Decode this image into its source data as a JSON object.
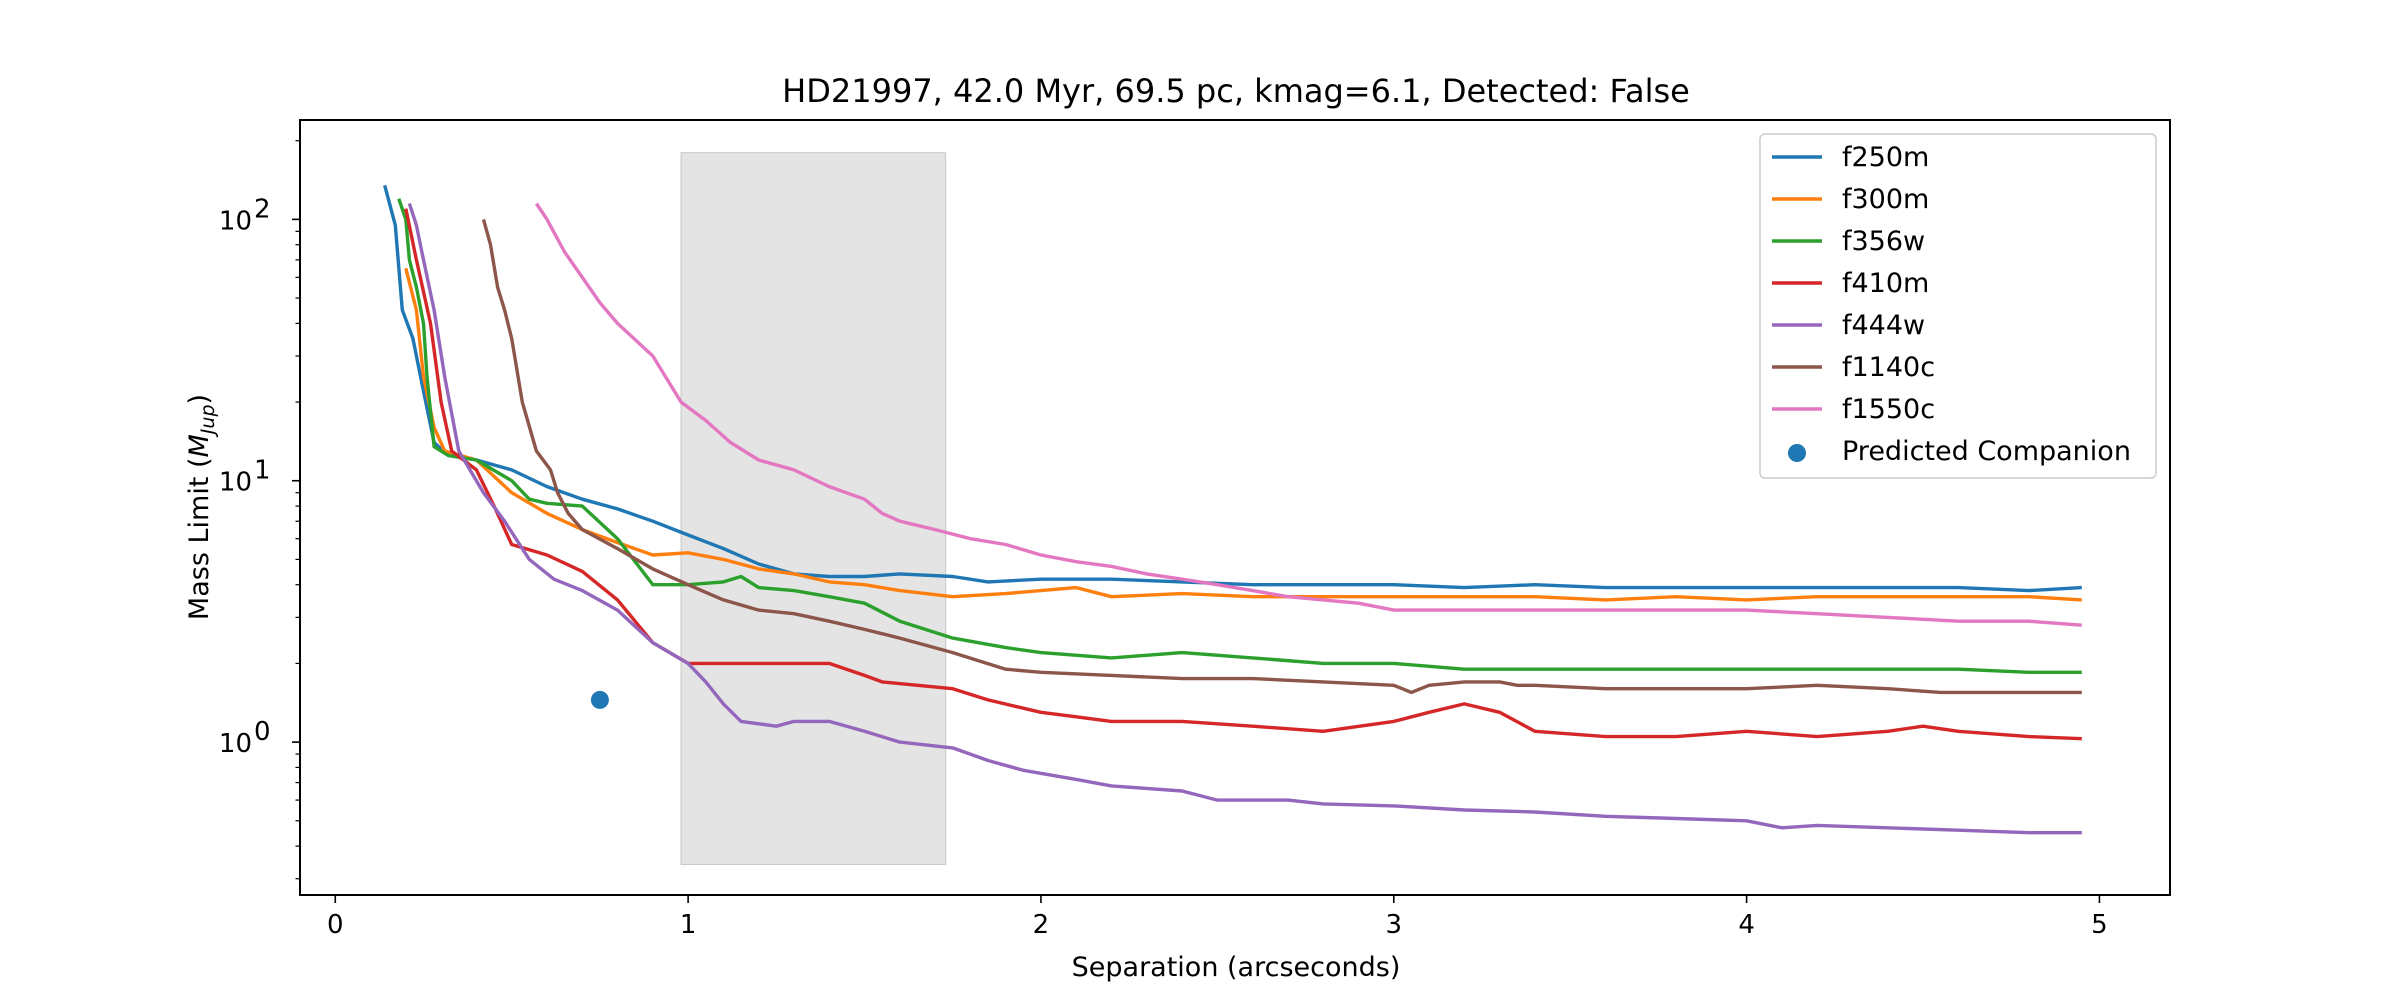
{
  "chart_data": {
    "type": "line",
    "title": "HD21997, 42.0 Myr, 69.5 pc, kmag=6.1, Detected: False",
    "xlabel": "Separation (arcseconds)",
    "ylabel_text": "Mass Limit (",
    "ylabel_math_base": "M",
    "ylabel_math_sub": "Jup",
    "ylabel_close": ")",
    "y_scale": "log",
    "xlim": [
      -0.1,
      5.2
    ],
    "ylim": [
      0.26,
      240
    ],
    "x_ticks": [
      0,
      1,
      2,
      3,
      4,
      5
    ],
    "x_tick_labels": [
      "0",
      "1",
      "2",
      "3",
      "4",
      "5"
    ],
    "y_major_ticks": [
      1,
      10,
      100
    ],
    "y_tick_labels": [
      {
        "base": "10",
        "exp": "0"
      },
      {
        "base": "10",
        "exp": "1"
      },
      {
        "base": "10",
        "exp": "2"
      }
    ],
    "grid": false,
    "legend_position": "top-right",
    "shaded_region": {
      "x": [
        0.98,
        1.73
      ],
      "y": [
        0.34,
        180
      ],
      "color": "#e4e4e4"
    },
    "series": [
      {
        "name": "f250m",
        "color": "#1f77b4",
        "points": [
          [
            0.14,
            135
          ],
          [
            0.17,
            95
          ],
          [
            0.19,
            45
          ],
          [
            0.22,
            35
          ],
          [
            0.25,
            22
          ],
          [
            0.28,
            14
          ],
          [
            0.32,
            12.5
          ],
          [
            0.4,
            12
          ],
          [
            0.5,
            11
          ],
          [
            0.6,
            9.5
          ],
          [
            0.7,
            8.5
          ],
          [
            0.8,
            7.8
          ],
          [
            0.9,
            7
          ],
          [
            1.0,
            6.2
          ],
          [
            1.1,
            5.5
          ],
          [
            1.2,
            4.8
          ],
          [
            1.3,
            4.4
          ],
          [
            1.4,
            4.3
          ],
          [
            1.5,
            4.3
          ],
          [
            1.6,
            4.4
          ],
          [
            1.75,
            4.3
          ],
          [
            1.85,
            4.1
          ],
          [
            2.0,
            4.2
          ],
          [
            2.2,
            4.2
          ],
          [
            2.4,
            4.1
          ],
          [
            2.6,
            4.0
          ],
          [
            2.8,
            4.0
          ],
          [
            3.0,
            4.0
          ],
          [
            3.2,
            3.9
          ],
          [
            3.4,
            4.0
          ],
          [
            3.6,
            3.9
          ],
          [
            3.8,
            3.9
          ],
          [
            4.0,
            3.9
          ],
          [
            4.2,
            3.9
          ],
          [
            4.4,
            3.9
          ],
          [
            4.6,
            3.9
          ],
          [
            4.8,
            3.8
          ],
          [
            4.95,
            3.9
          ]
        ]
      },
      {
        "name": "f300m",
        "color": "#ff7f0e",
        "points": [
          [
            0.2,
            65
          ],
          [
            0.23,
            45
          ],
          [
            0.25,
            25
          ],
          [
            0.28,
            16
          ],
          [
            0.31,
            13
          ],
          [
            0.4,
            12
          ],
          [
            0.5,
            9
          ],
          [
            0.6,
            7.5
          ],
          [
            0.7,
            6.5
          ],
          [
            0.8,
            5.8
          ],
          [
            0.9,
            5.2
          ],
          [
            1.0,
            5.3
          ],
          [
            1.1,
            5.0
          ],
          [
            1.2,
            4.6
          ],
          [
            1.3,
            4.4
          ],
          [
            1.4,
            4.1
          ],
          [
            1.5,
            4.0
          ],
          [
            1.6,
            3.8
          ],
          [
            1.75,
            3.6
          ],
          [
            1.9,
            3.7
          ],
          [
            2.0,
            3.8
          ],
          [
            2.1,
            3.9
          ],
          [
            2.2,
            3.6
          ],
          [
            2.4,
            3.7
          ],
          [
            2.6,
            3.6
          ],
          [
            2.8,
            3.6
          ],
          [
            3.0,
            3.6
          ],
          [
            3.2,
            3.6
          ],
          [
            3.4,
            3.6
          ],
          [
            3.6,
            3.5
          ],
          [
            3.8,
            3.6
          ],
          [
            4.0,
            3.5
          ],
          [
            4.2,
            3.6
          ],
          [
            4.4,
            3.6
          ],
          [
            4.6,
            3.6
          ],
          [
            4.8,
            3.6
          ],
          [
            4.95,
            3.5
          ]
        ]
      },
      {
        "name": "f356w",
        "color": "#2ca02c",
        "points": [
          [
            0.18,
            120
          ],
          [
            0.2,
            100
          ],
          [
            0.21,
            70
          ],
          [
            0.23,
            55
          ],
          [
            0.25,
            40
          ],
          [
            0.26,
            25
          ],
          [
            0.28,
            13.5
          ],
          [
            0.32,
            12.5
          ],
          [
            0.4,
            12
          ],
          [
            0.5,
            10
          ],
          [
            0.55,
            8.5
          ],
          [
            0.6,
            8.2
          ],
          [
            0.7,
            8.0
          ],
          [
            0.8,
            6.0
          ],
          [
            0.9,
            4.0
          ],
          [
            1.0,
            4.0
          ],
          [
            1.1,
            4.1
          ],
          [
            1.15,
            4.3
          ],
          [
            1.2,
            3.9
          ],
          [
            1.3,
            3.8
          ],
          [
            1.4,
            3.6
          ],
          [
            1.5,
            3.4
          ],
          [
            1.6,
            2.9
          ],
          [
            1.75,
            2.5
          ],
          [
            1.9,
            2.3
          ],
          [
            2.0,
            2.2
          ],
          [
            2.2,
            2.1
          ],
          [
            2.4,
            2.2
          ],
          [
            2.6,
            2.1
          ],
          [
            2.8,
            2.0
          ],
          [
            3.0,
            2.0
          ],
          [
            3.2,
            1.9
          ],
          [
            3.4,
            1.9
          ],
          [
            3.6,
            1.9
          ],
          [
            3.8,
            1.9
          ],
          [
            4.0,
            1.9
          ],
          [
            4.2,
            1.9
          ],
          [
            4.4,
            1.9
          ],
          [
            4.6,
            1.9
          ],
          [
            4.8,
            1.85
          ],
          [
            4.95,
            1.85
          ]
        ]
      },
      {
        "name": "f410m",
        "color": "#d62728",
        "points": [
          [
            0.2,
            110
          ],
          [
            0.23,
            70
          ],
          [
            0.27,
            40
          ],
          [
            0.3,
            20
          ],
          [
            0.33,
            13
          ],
          [
            0.4,
            11
          ],
          [
            0.45,
            8
          ],
          [
            0.5,
            5.7
          ],
          [
            0.6,
            5.2
          ],
          [
            0.7,
            4.5
          ],
          [
            0.8,
            3.5
          ],
          [
            0.9,
            2.4
          ],
          [
            1.0,
            2.0
          ],
          [
            1.1,
            2.0
          ],
          [
            1.2,
            2.0
          ],
          [
            1.3,
            2.0
          ],
          [
            1.4,
            2.0
          ],
          [
            1.5,
            1.8
          ],
          [
            1.55,
            1.7
          ],
          [
            1.65,
            1.65
          ],
          [
            1.75,
            1.6
          ],
          [
            1.85,
            1.45
          ],
          [
            2.0,
            1.3
          ],
          [
            2.1,
            1.25
          ],
          [
            2.2,
            1.2
          ],
          [
            2.3,
            1.2
          ],
          [
            2.4,
            1.2
          ],
          [
            2.6,
            1.15
          ],
          [
            2.8,
            1.1
          ],
          [
            3.0,
            1.2
          ],
          [
            3.1,
            1.3
          ],
          [
            3.2,
            1.4
          ],
          [
            3.3,
            1.3
          ],
          [
            3.4,
            1.1
          ],
          [
            3.6,
            1.05
          ],
          [
            3.8,
            1.05
          ],
          [
            4.0,
            1.1
          ],
          [
            4.2,
            1.05
          ],
          [
            4.4,
            1.1
          ],
          [
            4.5,
            1.15
          ],
          [
            4.6,
            1.1
          ],
          [
            4.8,
            1.05
          ],
          [
            4.95,
            1.03
          ]
        ]
      },
      {
        "name": "f444w",
        "color": "#9467bd",
        "points": [
          [
            0.21,
            115
          ],
          [
            0.23,
            95
          ],
          [
            0.25,
            70
          ],
          [
            0.28,
            45
          ],
          [
            0.31,
            25
          ],
          [
            0.35,
            13
          ],
          [
            0.42,
            9
          ],
          [
            0.48,
            7
          ],
          [
            0.55,
            5
          ],
          [
            0.62,
            4.2
          ],
          [
            0.7,
            3.8
          ],
          [
            0.8,
            3.2
          ],
          [
            0.9,
            2.4
          ],
          [
            1.0,
            2.0
          ],
          [
            1.05,
            1.7
          ],
          [
            1.1,
            1.4
          ],
          [
            1.15,
            1.2
          ],
          [
            1.25,
            1.15
          ],
          [
            1.3,
            1.2
          ],
          [
            1.4,
            1.2
          ],
          [
            1.5,
            1.1
          ],
          [
            1.6,
            1.0
          ],
          [
            1.75,
            0.95
          ],
          [
            1.85,
            0.85
          ],
          [
            1.95,
            0.78
          ],
          [
            2.1,
            0.72
          ],
          [
            2.2,
            0.68
          ],
          [
            2.4,
            0.65
          ],
          [
            2.5,
            0.6
          ],
          [
            2.7,
            0.6
          ],
          [
            2.8,
            0.58
          ],
          [
            3.0,
            0.57
          ],
          [
            3.2,
            0.55
          ],
          [
            3.4,
            0.54
          ],
          [
            3.6,
            0.52
          ],
          [
            3.8,
            0.51
          ],
          [
            4.0,
            0.5
          ],
          [
            4.1,
            0.47
          ],
          [
            4.2,
            0.48
          ],
          [
            4.4,
            0.47
          ],
          [
            4.6,
            0.46
          ],
          [
            4.8,
            0.45
          ],
          [
            4.95,
            0.45
          ]
        ]
      },
      {
        "name": "f1140c",
        "color": "#8c564b",
        "points": [
          [
            0.42,
            100
          ],
          [
            0.44,
            80
          ],
          [
            0.46,
            55
          ],
          [
            0.48,
            45
          ],
          [
            0.5,
            35
          ],
          [
            0.53,
            20
          ],
          [
            0.57,
            13
          ],
          [
            0.61,
            11
          ],
          [
            0.63,
            9
          ],
          [
            0.66,
            7.5
          ],
          [
            0.7,
            6.5
          ],
          [
            0.8,
            5.5
          ],
          [
            0.9,
            4.6
          ],
          [
            1.0,
            4.0
          ],
          [
            1.1,
            3.5
          ],
          [
            1.2,
            3.2
          ],
          [
            1.3,
            3.1
          ],
          [
            1.4,
            2.9
          ],
          [
            1.5,
            2.7
          ],
          [
            1.6,
            2.5
          ],
          [
            1.75,
            2.2
          ],
          [
            1.9,
            1.9
          ],
          [
            2.0,
            1.85
          ],
          [
            2.2,
            1.8
          ],
          [
            2.4,
            1.75
          ],
          [
            2.6,
            1.75
          ],
          [
            2.8,
            1.7
          ],
          [
            3.0,
            1.65
          ],
          [
            3.05,
            1.55
          ],
          [
            3.1,
            1.65
          ],
          [
            3.2,
            1.7
          ],
          [
            3.3,
            1.7
          ],
          [
            3.35,
            1.65
          ],
          [
            3.4,
            1.65
          ],
          [
            3.6,
            1.6
          ],
          [
            3.8,
            1.6
          ],
          [
            4.0,
            1.6
          ],
          [
            4.2,
            1.65
          ],
          [
            4.4,
            1.6
          ],
          [
            4.55,
            1.55
          ],
          [
            4.7,
            1.55
          ],
          [
            4.8,
            1.55
          ],
          [
            4.95,
            1.55
          ]
        ]
      },
      {
        "name": "f1550c",
        "color": "#e377c2",
        "points": [
          [
            0.57,
            115
          ],
          [
            0.6,
            100
          ],
          [
            0.65,
            75
          ],
          [
            0.7,
            60
          ],
          [
            0.75,
            48
          ],
          [
            0.8,
            40
          ],
          [
            0.9,
            30
          ],
          [
            0.98,
            20
          ],
          [
            1.05,
            17
          ],
          [
            1.12,
            14
          ],
          [
            1.2,
            12
          ],
          [
            1.3,
            11
          ],
          [
            1.4,
            9.5
          ],
          [
            1.5,
            8.5
          ],
          [
            1.55,
            7.5
          ],
          [
            1.6,
            7
          ],
          [
            1.7,
            6.5
          ],
          [
            1.8,
            6
          ],
          [
            1.9,
            5.7
          ],
          [
            2.0,
            5.2
          ],
          [
            2.1,
            4.9
          ],
          [
            2.2,
            4.7
          ],
          [
            2.3,
            4.4
          ],
          [
            2.4,
            4.2
          ],
          [
            2.5,
            4.0
          ],
          [
            2.6,
            3.8
          ],
          [
            2.7,
            3.6
          ],
          [
            2.8,
            3.5
          ],
          [
            2.9,
            3.4
          ],
          [
            3.0,
            3.2
          ],
          [
            3.1,
            3.2
          ],
          [
            3.2,
            3.2
          ],
          [
            3.4,
            3.2
          ],
          [
            3.6,
            3.2
          ],
          [
            3.8,
            3.2
          ],
          [
            4.0,
            3.2
          ],
          [
            4.2,
            3.1
          ],
          [
            4.4,
            3.0
          ],
          [
            4.6,
            2.9
          ],
          [
            4.8,
            2.9
          ],
          [
            4.95,
            2.8
          ]
        ]
      }
    ],
    "scatter": {
      "name": "Predicted Companion",
      "color": "#1f77b4",
      "x": 0.75,
      "y": 1.45
    }
  }
}
